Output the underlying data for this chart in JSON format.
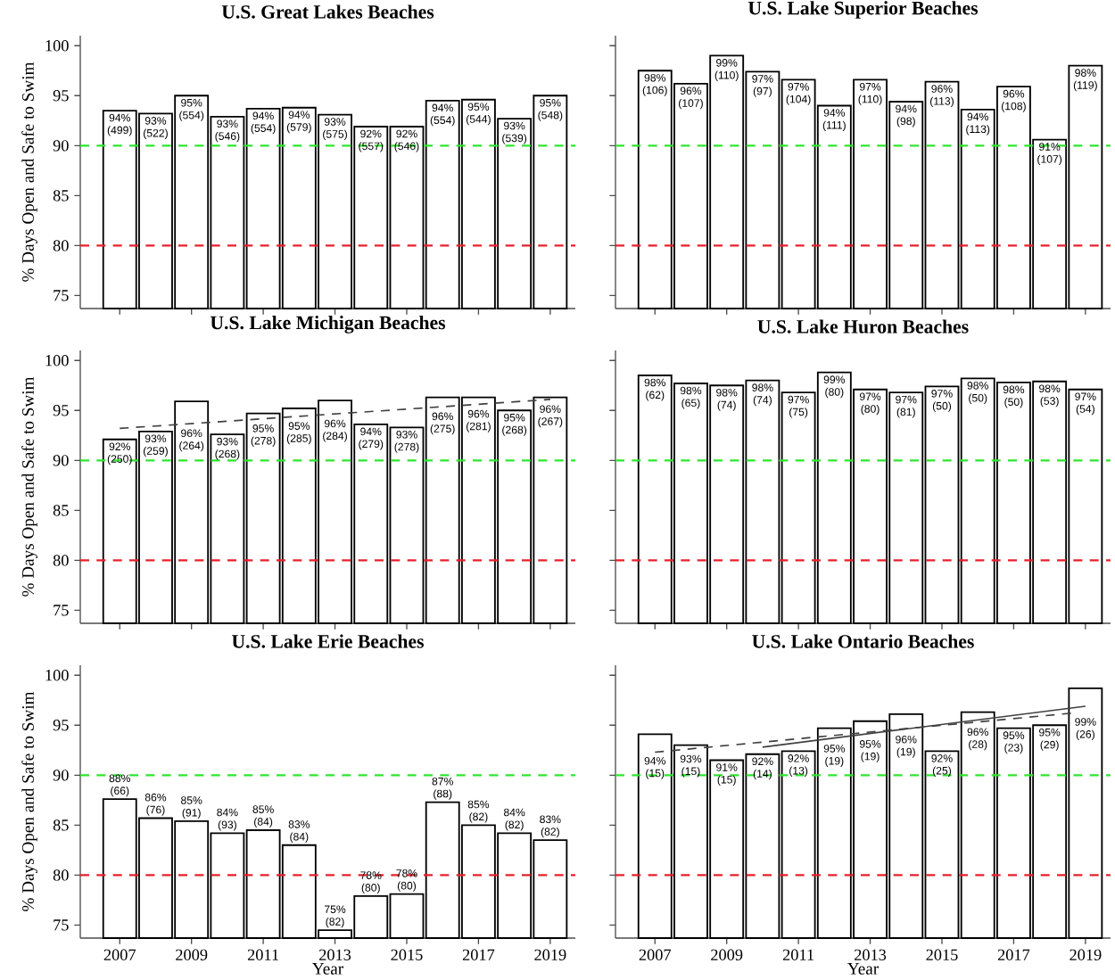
{
  "chart_data": [
    {
      "type": "bar",
      "title": "U.S. Great Lakes Beaches",
      "ylabel": "% Days Open and Safe to Swim",
      "x": [
        2007,
        2008,
        2009,
        2010,
        2011,
        2012,
        2013,
        2014,
        2015,
        2016,
        2017,
        2018,
        2019
      ],
      "xlim": [
        2005.9,
        2019.7
      ],
      "xticks": [
        2007,
        2009,
        2011,
        2013,
        2015,
        2017,
        2019
      ],
      "ylim": [
        73.7,
        101
      ],
      "yticks": [
        75,
        80,
        85,
        90,
        95,
        100
      ],
      "tick_labels": "y",
      "ref_lines": [
        {
          "axis": "y",
          "value": 90,
          "color": "#2ee62e",
          "line_style": "dashed"
        },
        {
          "axis": "y",
          "value": 80,
          "color": "#e8202a",
          "line_style": "dashed"
        }
      ],
      "series": [
        {
          "color": "#ffffff",
          "values": [
            93.5,
            93.2,
            95.0,
            92.9,
            93.7,
            93.8,
            93.1,
            91.9,
            91.9,
            94.5,
            94.6,
            92.7,
            95.0
          ],
          "value_labels": [
            "94% (499)",
            "93% (522)",
            "95% (554)",
            "93% (546)",
            "94% (554)",
            "94% (579)",
            "93% (575)",
            "92% (557)",
            "92% (546)",
            "94% (554)",
            "95% (544)",
            "93% (539)",
            "95% (548)"
          ]
        }
      ]
    },
    {
      "type": "bar",
      "title": "U.S. Lake Superior Beaches",
      "x": [
        2007,
        2008,
        2009,
        2010,
        2011,
        2012,
        2013,
        2014,
        2015,
        2016,
        2017,
        2018,
        2019
      ],
      "xlim": [
        2005.9,
        2019.7
      ],
      "xticks": [
        2007,
        2009,
        2011,
        2013,
        2015,
        2017,
        2019
      ],
      "ylim": [
        73.7,
        101
      ],
      "yticks": [
        75,
        80,
        85,
        90,
        95,
        100
      ],
      "tick_labels": false,
      "ref_lines": [
        {
          "axis": "y",
          "value": 90,
          "color": "#2ee62e",
          "line_style": "dashed"
        },
        {
          "axis": "y",
          "value": 80,
          "color": "#e8202a",
          "line_style": "dashed"
        }
      ],
      "series": [
        {
          "color": "#ffffff",
          "values": [
            97.5,
            96.2,
            99.0,
            97.4,
            96.6,
            94.0,
            96.6,
            94.4,
            96.4,
            93.6,
            95.9,
            90.6,
            98.0
          ],
          "value_labels": [
            "98% (106)",
            "96% (107)",
            "99% (110)",
            "97% (97)",
            "97% (104)",
            "94% (111)",
            "97% (110)",
            "94% (98)",
            "96% (113)",
            "94% (113)",
            "96% (108)",
            "91% (107)",
            "98% (119)"
          ]
        }
      ]
    },
    {
      "type": "bar",
      "title": "U.S. Lake Michigan Beaches",
      "ylabel": "% Days Open and Safe to Swim",
      "x": [
        2007,
        2008,
        2009,
        2010,
        2011,
        2012,
        2013,
        2014,
        2015,
        2016,
        2017,
        2018,
        2019
      ],
      "xlim": [
        2005.9,
        2019.7
      ],
      "xticks": [
        2007,
        2009,
        2011,
        2013,
        2015,
        2017,
        2019
      ],
      "ylim": [
        73.7,
        101
      ],
      "yticks": [
        75,
        80,
        85,
        90,
        95,
        100
      ],
      "tick_labels": "y",
      "ref_lines": [
        {
          "axis": "y",
          "value": 90,
          "color": "#2ee62e",
          "line_style": "dashed"
        },
        {
          "axis": "y",
          "value": 80,
          "color": "#e8202a",
          "line_style": "dashed"
        }
      ],
      "series": [
        {
          "color": "#ffffff",
          "values": [
            92.1,
            92.9,
            95.9,
            92.6,
            94.7,
            95.2,
            96.0,
            93.6,
            93.3,
            96.3,
            96.3,
            95.0,
            96.3
          ],
          "value_labels": [
            "92% (250)",
            "93% (259)",
            "96% (264)",
            "93% (268)",
            "95% (278)",
            "95% (285)",
            "96% (284)",
            "94% (279)",
            "93% (278)",
            "96% (275)",
            "96% (281)",
            "95% (268)",
            "96% (267)"
          ]
        },
        {
          "type": "line",
          "color": "#404040",
          "line_style": "dashed",
          "x": [
            2007,
            2019
          ],
          "values": [
            93.2,
            96.1
          ]
        }
      ]
    },
    {
      "type": "bar",
      "title": "U.S. Lake Huron Beaches",
      "x": [
        2007,
        2008,
        2009,
        2010,
        2011,
        2012,
        2013,
        2014,
        2015,
        2016,
        2017,
        2018,
        2019
      ],
      "xlim": [
        2005.9,
        2019.7
      ],
      "xticks": [
        2007,
        2009,
        2011,
        2013,
        2015,
        2017,
        2019
      ],
      "ylim": [
        73.7,
        101
      ],
      "yticks": [
        75,
        80,
        85,
        90,
        95,
        100
      ],
      "tick_labels": false,
      "ref_lines": [
        {
          "axis": "y",
          "value": 90,
          "color": "#2ee62e",
          "line_style": "dashed"
        },
        {
          "axis": "y",
          "value": 80,
          "color": "#e8202a",
          "line_style": "dashed"
        }
      ],
      "series": [
        {
          "color": "#ffffff",
          "values": [
            98.5,
            97.7,
            97.5,
            98.0,
            96.8,
            98.8,
            97.1,
            96.8,
            97.4,
            98.2,
            97.8,
            97.9,
            97.1
          ],
          "value_labels": [
            "98% (62)",
            "98% (65)",
            "98% (74)",
            "98% (74)",
            "97% (75)",
            "99% (80)",
            "97% (80)",
            "97% (81)",
            "97% (50)",
            "98% (50)",
            "98% (50)",
            "98% (53)",
            "97% (54)"
          ]
        }
      ]
    },
    {
      "type": "bar",
      "title": "U.S. Lake Erie Beaches",
      "ylabel": "% Days Open and Safe to Swim",
      "xlabel": "Year",
      "x": [
        2007,
        2008,
        2009,
        2010,
        2011,
        2012,
        2013,
        2014,
        2015,
        2016,
        2017,
        2018,
        2019
      ],
      "xlim": [
        2005.9,
        2019.7
      ],
      "xticks": [
        2007,
        2009,
        2011,
        2013,
        2015,
        2017,
        2019
      ],
      "ylim": [
        73.7,
        101
      ],
      "yticks": [
        75,
        80,
        85,
        90,
        95,
        100
      ],
      "ref_lines": [
        {
          "axis": "y",
          "value": 90,
          "color": "#2ee62e",
          "line_style": "dashed"
        },
        {
          "axis": "y",
          "value": 80,
          "color": "#e8202a",
          "line_style": "dashed"
        }
      ],
      "series": [
        {
          "color": "#ffffff",
          "values": [
            87.6,
            85.7,
            85.4,
            84.2,
            84.5,
            83.0,
            74.5,
            77.9,
            78.1,
            87.3,
            85.0,
            84.2,
            83.5
          ],
          "value_labels": [
            "88% (66)",
            "86% (76)",
            "85% (91)",
            "84% (93)",
            "85% (84)",
            "83% (84)",
            "75% (82)",
            "78% (80)",
            "78% (80)",
            "87% (88)",
            "85% (82)",
            "84% (82)",
            "83% (82)"
          ]
        }
      ]
    },
    {
      "type": "bar",
      "title": "U.S. Lake Ontario Beaches",
      "xlabel": "Year",
      "x": [
        2007,
        2008,
        2009,
        2010,
        2011,
        2012,
        2013,
        2014,
        2015,
        2016,
        2017,
        2018,
        2019
      ],
      "xlim": [
        2005.9,
        2019.7
      ],
      "xticks": [
        2007,
        2009,
        2011,
        2013,
        2015,
        2017,
        2019
      ],
      "ylim": [
        73.7,
        101
      ],
      "yticks": [
        75,
        80,
        85,
        90,
        95,
        100
      ],
      "tick_labels": "x",
      "ref_lines": [
        {
          "axis": "y",
          "value": 90,
          "color": "#2ee62e",
          "line_style": "dashed"
        },
        {
          "axis": "y",
          "value": 80,
          "color": "#e8202a",
          "line_style": "dashed"
        }
      ],
      "series": [
        {
          "color": "#ffffff",
          "values": [
            94.1,
            93.0,
            91.5,
            92.1,
            92.4,
            94.7,
            95.4,
            96.1,
            92.4,
            96.3,
            94.7,
            95.0,
            98.7
          ],
          "value_labels": [
            "94% (15)",
            "93% (15)",
            "91% (15)",
            "92% (14)",
            "92% (13)",
            "95% (19)",
            "95% (19)",
            "96% (19)",
            "92% (25)",
            "96% (28)",
            "95% (23)",
            "95% (29)",
            "99% (26)"
          ]
        },
        {
          "type": "line",
          "color": "#404040",
          "line_style": "dashed",
          "x": [
            2007,
            2018.6
          ],
          "values": [
            92.3,
            96.2
          ]
        },
        {
          "type": "line",
          "color": "#404040",
          "line_style": "solid",
          "x": [
            2010,
            2019
          ],
          "values": [
            92.8,
            96.9
          ]
        }
      ]
    }
  ]
}
